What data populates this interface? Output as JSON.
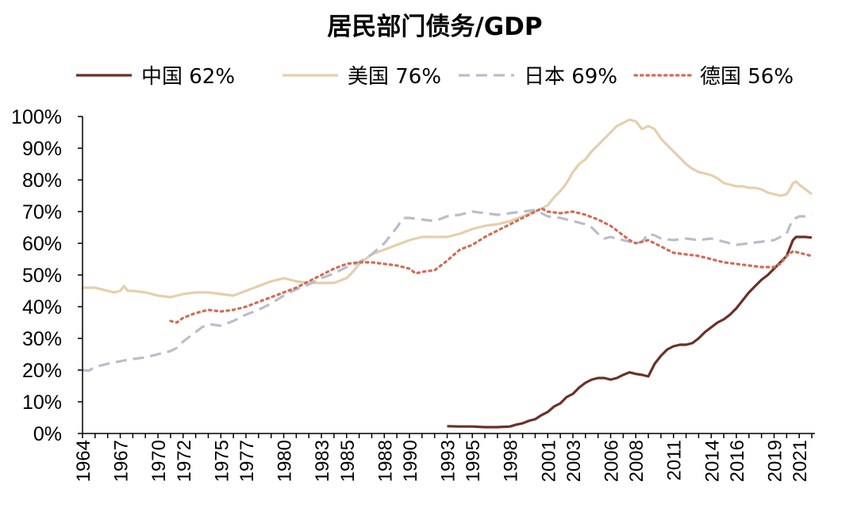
{
  "chart_data": {
    "type": "line",
    "title": "居民部门债务/GDP",
    "legend_position": "top",
    "grid": false,
    "xlim": [
      1964,
      2022.25
    ],
    "ylim": [
      0,
      100
    ],
    "y_ticks": [
      "0%",
      "10%",
      "20%",
      "30%",
      "40%",
      "50%",
      "60%",
      "70%",
      "80%",
      "90%",
      "100%"
    ],
    "x_ticks": [
      "1964",
      "1967",
      "1970",
      "1972",
      "1975",
      "1977",
      "1980",
      "1983",
      "1985",
      "1988",
      "1990",
      "1993",
      "1995",
      "1998",
      "2001",
      "2003",
      "2006",
      "2008",
      "2011",
      "2014",
      "2016",
      "2019",
      "2021"
    ],
    "series": [
      {
        "name": "中国",
        "legend_value": "62%",
        "color": "#6b3028",
        "style": "solid",
        "points": [
          [
            1993.0,
            2.3
          ],
          [
            1994.0,
            2.2
          ],
          [
            1995.0,
            2.2
          ],
          [
            1996.0,
            2.0
          ],
          [
            1997.0,
            2.0
          ],
          [
            1998.0,
            2.2
          ],
          [
            1998.5,
            2.8
          ],
          [
            1999.0,
            3.2
          ],
          [
            1999.5,
            4.0
          ],
          [
            2000.0,
            4.5
          ],
          [
            2000.5,
            5.8
          ],
          [
            2001.0,
            6.8
          ],
          [
            2001.5,
            8.5
          ],
          [
            2002.0,
            9.5
          ],
          [
            2002.5,
            11.5
          ],
          [
            2003.0,
            12.5
          ],
          [
            2003.5,
            14.5
          ],
          [
            2004.0,
            16.0
          ],
          [
            2004.5,
            17.0
          ],
          [
            2005.0,
            17.5
          ],
          [
            2005.5,
            17.5
          ],
          [
            2006.0,
            17.0
          ],
          [
            2006.5,
            17.5
          ],
          [
            2007.0,
            18.5
          ],
          [
            2007.5,
            19.3
          ],
          [
            2008.0,
            18.8
          ],
          [
            2008.5,
            18.5
          ],
          [
            2009.0,
            18.0
          ],
          [
            2009.25,
            20.0
          ],
          [
            2009.5,
            22.0
          ],
          [
            2010.0,
            24.5
          ],
          [
            2010.5,
            26.5
          ],
          [
            2011.0,
            27.5
          ],
          [
            2011.5,
            28.0
          ],
          [
            2012.0,
            28.0
          ],
          [
            2012.5,
            28.5
          ],
          [
            2013.0,
            30.0
          ],
          [
            2013.5,
            32.0
          ],
          [
            2014.0,
            33.5
          ],
          [
            2014.5,
            35.0
          ],
          [
            2015.0,
            36.0
          ],
          [
            2015.5,
            37.5
          ],
          [
            2016.0,
            39.5
          ],
          [
            2016.5,
            42.0
          ],
          [
            2017.0,
            44.5
          ],
          [
            2017.5,
            46.5
          ],
          [
            2018.0,
            48.5
          ],
          [
            2018.5,
            50.0
          ],
          [
            2019.0,
            52.0
          ],
          [
            2019.5,
            54.0
          ],
          [
            2020.0,
            56.0
          ],
          [
            2020.25,
            58.5
          ],
          [
            2020.5,
            61.0
          ],
          [
            2020.75,
            62.0
          ],
          [
            2021.0,
            62.0
          ],
          [
            2021.5,
            62.0
          ],
          [
            2022.0,
            61.8
          ]
        ]
      },
      {
        "name": "美国",
        "legend_value": "76%",
        "color": "#e5cfac",
        "style": "solid",
        "points": [
          [
            1964.0,
            46.0
          ],
          [
            1965.0,
            46.0
          ],
          [
            1966.0,
            45.0
          ],
          [
            1966.5,
            44.5
          ],
          [
            1967.0,
            45.0
          ],
          [
            1967.3,
            46.5
          ],
          [
            1967.6,
            45.0
          ],
          [
            1968.0,
            45.0
          ],
          [
            1969.0,
            44.5
          ],
          [
            1970.0,
            43.5
          ],
          [
            1971.0,
            43.0
          ],
          [
            1972.0,
            44.0
          ],
          [
            1973.0,
            44.5
          ],
          [
            1974.0,
            44.5
          ],
          [
            1975.0,
            44.0
          ],
          [
            1976.0,
            43.5
          ],
          [
            1977.0,
            45.0
          ],
          [
            1978.0,
            46.5
          ],
          [
            1979.0,
            48.0
          ],
          [
            1980.0,
            49.0
          ],
          [
            1981.0,
            48.0
          ],
          [
            1982.0,
            47.5
          ],
          [
            1983.0,
            47.5
          ],
          [
            1984.0,
            47.5
          ],
          [
            1985.0,
            49.0
          ],
          [
            1985.5,
            51.0
          ],
          [
            1986.0,
            53.5
          ],
          [
            1987.0,
            56.5
          ],
          [
            1988.0,
            58.0
          ],
          [
            1989.0,
            59.5
          ],
          [
            1990.0,
            61.0
          ],
          [
            1991.0,
            62.0
          ],
          [
            1992.0,
            62.0
          ],
          [
            1993.0,
            62.0
          ],
          [
            1994.0,
            63.0
          ],
          [
            1995.0,
            64.5
          ],
          [
            1996.0,
            65.5
          ],
          [
            1997.0,
            66.0
          ],
          [
            1998.0,
            67.0
          ],
          [
            1999.0,
            68.5
          ],
          [
            2000.0,
            70.0
          ],
          [
            2000.5,
            71.0
          ],
          [
            2001.0,
            72.0
          ],
          [
            2001.5,
            74.5
          ],
          [
            2002.0,
            76.5
          ],
          [
            2002.5,
            79.0
          ],
          [
            2003.0,
            82.5
          ],
          [
            2003.5,
            85.0
          ],
          [
            2004.0,
            86.5
          ],
          [
            2004.5,
            89.0
          ],
          [
            2005.0,
            91.0
          ],
          [
            2005.5,
            93.0
          ],
          [
            2006.0,
            95.0
          ],
          [
            2006.5,
            97.0
          ],
          [
            2007.0,
            98.0
          ],
          [
            2007.5,
            99.0
          ],
          [
            2008.0,
            98.5
          ],
          [
            2008.5,
            96.0
          ],
          [
            2009.0,
            97.0
          ],
          [
            2009.5,
            96.0
          ],
          [
            2010.0,
            93.0
          ],
          [
            2010.5,
            91.0
          ],
          [
            2011.0,
            89.0
          ],
          [
            2011.5,
            87.0
          ],
          [
            2012.0,
            85.0
          ],
          [
            2012.5,
            83.5
          ],
          [
            2013.0,
            82.5
          ],
          [
            2013.5,
            82.0
          ],
          [
            2014.0,
            81.5
          ],
          [
            2014.5,
            80.5
          ],
          [
            2015.0,
            79.0
          ],
          [
            2015.5,
            78.5
          ],
          [
            2016.0,
            78.0
          ],
          [
            2016.5,
            78.0
          ],
          [
            2017.0,
            77.5
          ],
          [
            2017.5,
            77.5
          ],
          [
            2018.0,
            77.0
          ],
          [
            2018.5,
            76.0
          ],
          [
            2019.0,
            75.5
          ],
          [
            2019.5,
            75.0
          ],
          [
            2020.0,
            75.5
          ],
          [
            2020.25,
            77.0
          ],
          [
            2020.5,
            79.0
          ],
          [
            2020.75,
            79.5
          ],
          [
            2021.0,
            78.5
          ],
          [
            2021.5,
            77.0
          ],
          [
            2022.0,
            75.5
          ]
        ]
      },
      {
        "name": "日本",
        "legend_value": "69%",
        "color": "#bcbccc",
        "style": "dashed",
        "points": [
          [
            1964.0,
            20.0
          ],
          [
            1964.5,
            19.8
          ],
          [
            1965.0,
            21.0
          ],
          [
            1966.0,
            22.0
          ],
          [
            1967.0,
            22.8
          ],
          [
            1968.0,
            23.5
          ],
          [
            1969.0,
            24.0
          ],
          [
            1970.0,
            25.0
          ],
          [
            1971.0,
            26.0
          ],
          [
            1971.5,
            27.0
          ],
          [
            1972.0,
            29.0
          ],
          [
            1973.0,
            32.0
          ],
          [
            1973.5,
            33.5
          ],
          [
            1974.0,
            34.5
          ],
          [
            1975.0,
            34.0
          ],
          [
            1976.0,
            35.5
          ],
          [
            1977.0,
            37.5
          ],
          [
            1978.0,
            39.0
          ],
          [
            1979.0,
            41.0
          ],
          [
            1980.0,
            43.5
          ],
          [
            1981.0,
            45.5
          ],
          [
            1982.0,
            47.0
          ],
          [
            1983.0,
            49.0
          ],
          [
            1984.0,
            50.5
          ],
          [
            1985.0,
            52.5
          ],
          [
            1986.0,
            54.0
          ],
          [
            1987.0,
            56.5
          ],
          [
            1988.0,
            60.0
          ],
          [
            1988.5,
            62.5
          ],
          [
            1989.0,
            65.0
          ],
          [
            1989.5,
            68.0
          ],
          [
            1990.0,
            68.0
          ],
          [
            1991.0,
            67.5
          ],
          [
            1992.0,
            67.0
          ],
          [
            1993.0,
            68.5
          ],
          [
            1994.0,
            69.0
          ],
          [
            1995.0,
            70.0
          ],
          [
            1996.0,
            69.5
          ],
          [
            1997.0,
            69.0
          ],
          [
            1998.0,
            69.5
          ],
          [
            1999.0,
            70.0
          ],
          [
            2000.0,
            70.5
          ],
          [
            2000.5,
            69.5
          ],
          [
            2001.0,
            68.5
          ],
          [
            2002.0,
            68.0
          ],
          [
            2003.0,
            67.0
          ],
          [
            2004.0,
            66.0
          ],
          [
            2004.5,
            65.0
          ],
          [
            2005.0,
            63.0
          ],
          [
            2005.5,
            61.5
          ],
          [
            2006.0,
            62.0
          ],
          [
            2007.0,
            61.0
          ],
          [
            2008.0,
            60.0
          ],
          [
            2008.5,
            60.5
          ],
          [
            2009.0,
            63.0
          ],
          [
            2009.5,
            62.5
          ],
          [
            2010.0,
            61.5
          ],
          [
            2011.0,
            61.0
          ],
          [
            2012.0,
            61.5
          ],
          [
            2013.0,
            61.0
          ],
          [
            2014.0,
            61.5
          ],
          [
            2015.0,
            60.5
          ],
          [
            2016.0,
            59.5
          ],
          [
            2017.0,
            60.0
          ],
          [
            2018.0,
            60.5
          ],
          [
            2019.0,
            61.0
          ],
          [
            2019.5,
            62.0
          ],
          [
            2020.0,
            63.0
          ],
          [
            2020.25,
            65.5
          ],
          [
            2020.5,
            67.5
          ],
          [
            2021.0,
            68.5
          ],
          [
            2021.5,
            68.5
          ],
          [
            2022.0,
            69.0
          ]
        ]
      },
      {
        "name": "德国",
        "legend_value": "56%",
        "color": "#cf6e55",
        "style": "dotted",
        "points": [
          [
            1971.0,
            35.5
          ],
          [
            1971.5,
            35.0
          ],
          [
            1972.0,
            36.5
          ],
          [
            1973.0,
            38.0
          ],
          [
            1974.0,
            39.0
          ],
          [
            1975.0,
            38.5
          ],
          [
            1976.0,
            39.0
          ],
          [
            1977.0,
            40.0
          ],
          [
            1978.0,
            41.5
          ],
          [
            1979.0,
            43.0
          ],
          [
            1980.0,
            44.5
          ],
          [
            1981.0,
            46.0
          ],
          [
            1982.0,
            48.0
          ],
          [
            1983.0,
            50.0
          ],
          [
            1984.0,
            52.0
          ],
          [
            1985.0,
            53.5
          ],
          [
            1986.0,
            54.0
          ],
          [
            1987.0,
            54.0
          ],
          [
            1988.0,
            53.5
          ],
          [
            1989.0,
            53.0
          ],
          [
            1990.0,
            52.0
          ],
          [
            1990.5,
            50.5
          ],
          [
            1991.0,
            51.0
          ],
          [
            1992.0,
            51.5
          ],
          [
            1993.0,
            54.5
          ],
          [
            1994.0,
            58.0
          ],
          [
            1995.0,
            59.5
          ],
          [
            1996.0,
            62.0
          ],
          [
            1997.0,
            64.0
          ],
          [
            1998.0,
            66.0
          ],
          [
            1999.0,
            68.0
          ],
          [
            2000.0,
            70.0
          ],
          [
            2000.5,
            71.0
          ],
          [
            2001.0,
            70.0
          ],
          [
            2002.0,
            69.5
          ],
          [
            2003.0,
            70.0
          ],
          [
            2004.0,
            69.0
          ],
          [
            2005.0,
            67.5
          ],
          [
            2006.0,
            65.5
          ],
          [
            2007.0,
            62.5
          ],
          [
            2007.5,
            61.0
          ],
          [
            2008.0,
            60.0
          ],
          [
            2009.0,
            61.0
          ],
          [
            2010.0,
            59.0
          ],
          [
            2011.0,
            57.0
          ],
          [
            2012.0,
            56.5
          ],
          [
            2013.0,
            56.0
          ],
          [
            2014.0,
            55.0
          ],
          [
            2015.0,
            54.0
          ],
          [
            2016.0,
            53.5
          ],
          [
            2017.0,
            53.0
          ],
          [
            2018.0,
            52.5
          ],
          [
            2019.0,
            52.5
          ],
          [
            2019.5,
            53.5
          ],
          [
            2020.0,
            56.0
          ],
          [
            2020.5,
            57.5
          ],
          [
            2021.0,
            57.0
          ],
          [
            2021.5,
            56.5
          ],
          [
            2022.0,
            56.0
          ]
        ]
      }
    ]
  }
}
